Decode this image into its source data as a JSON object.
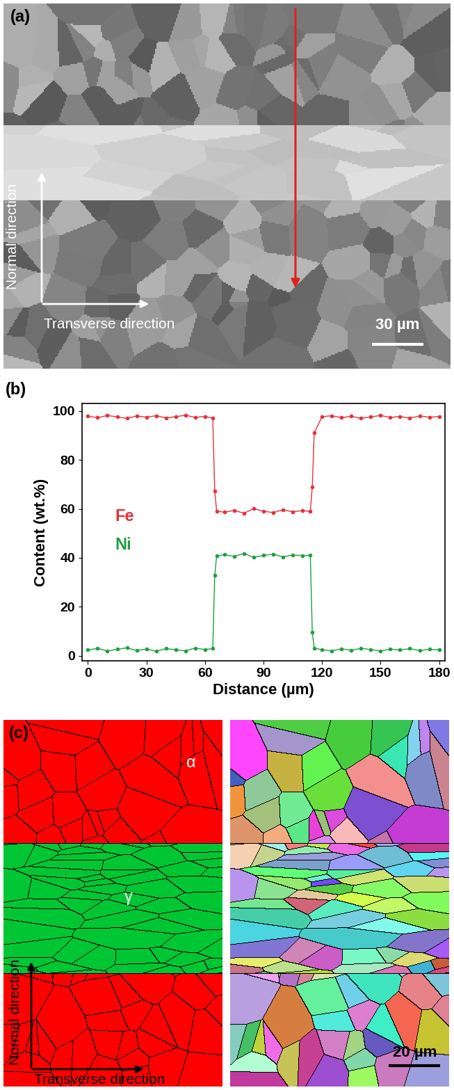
{
  "panel_a": {
    "label": "(a)",
    "vertical_axis": "Normal direction",
    "horizontal_axis": "Transverse direction",
    "scale_bar": "30 µm"
  },
  "chart_data": {
    "type": "line",
    "title": "(b)",
    "x_label": "Distance (µm)",
    "y_label": "Content (wt.%)",
    "x": [
      0,
      5,
      10,
      15,
      20,
      25,
      30,
      35,
      40,
      45,
      50,
      55,
      60,
      64,
      65,
      66,
      70,
      75,
      80,
      85,
      90,
      95,
      100,
      105,
      110,
      114,
      115,
      116,
      120,
      125,
      130,
      135,
      140,
      145,
      150,
      155,
      160,
      165,
      170,
      175,
      180
    ],
    "series": [
      {
        "name": "Fe",
        "color": "#e8303a",
        "marker": "o",
        "line_style": "solid",
        "values": [
          97.8,
          97.2,
          98.1,
          97.5,
          96.9,
          97.9,
          97.4,
          98.0,
          97.1,
          97.6,
          98.2,
          97.3,
          97.7,
          97.0,
          67.2,
          59.1,
          58.6,
          59.4,
          58.2,
          60.1,
          59.0,
          58.5,
          59.6,
          58.8,
          59.3,
          58.9,
          69.0,
          91.0,
          97.6,
          98.0,
          97.2,
          97.8,
          96.9,
          97.5,
          98.1,
          97.3,
          97.7,
          97.0,
          97.9,
          97.4,
          97.6
        ]
      },
      {
        "name": "Ni",
        "color": "#1fa040",
        "marker": "o",
        "line_style": "solid",
        "values": [
          2.4,
          3.1,
          2.0,
          2.7,
          3.3,
          2.2,
          2.8,
          1.9,
          3.0,
          2.5,
          2.1,
          3.2,
          2.6,
          3.0,
          33.0,
          40.8,
          41.3,
          40.6,
          41.8,
          40.2,
          41.0,
          41.5,
          40.4,
          41.2,
          40.9,
          41.0,
          9.5,
          3.2,
          2.5,
          2.1,
          2.9,
          2.3,
          3.1,
          2.6,
          2.0,
          2.8,
          2.4,
          3.0,
          2.2,
          2.7,
          2.5
        ]
      }
    ],
    "xlim": [
      -3,
      183
    ],
    "ylim": [
      -2,
      103
    ],
    "xticks": [
      0,
      30,
      60,
      90,
      120,
      150,
      180
    ],
    "yticks": [
      0,
      20,
      40,
      60,
      80,
      100
    ],
    "grid": false
  },
  "panel_c": {
    "label": "(c)",
    "phases": [
      "α",
      "γ"
    ],
    "vertical_axis": "Normal direction",
    "horizontal_axis": "Transverse direction",
    "scale_bar": "20 µm"
  }
}
